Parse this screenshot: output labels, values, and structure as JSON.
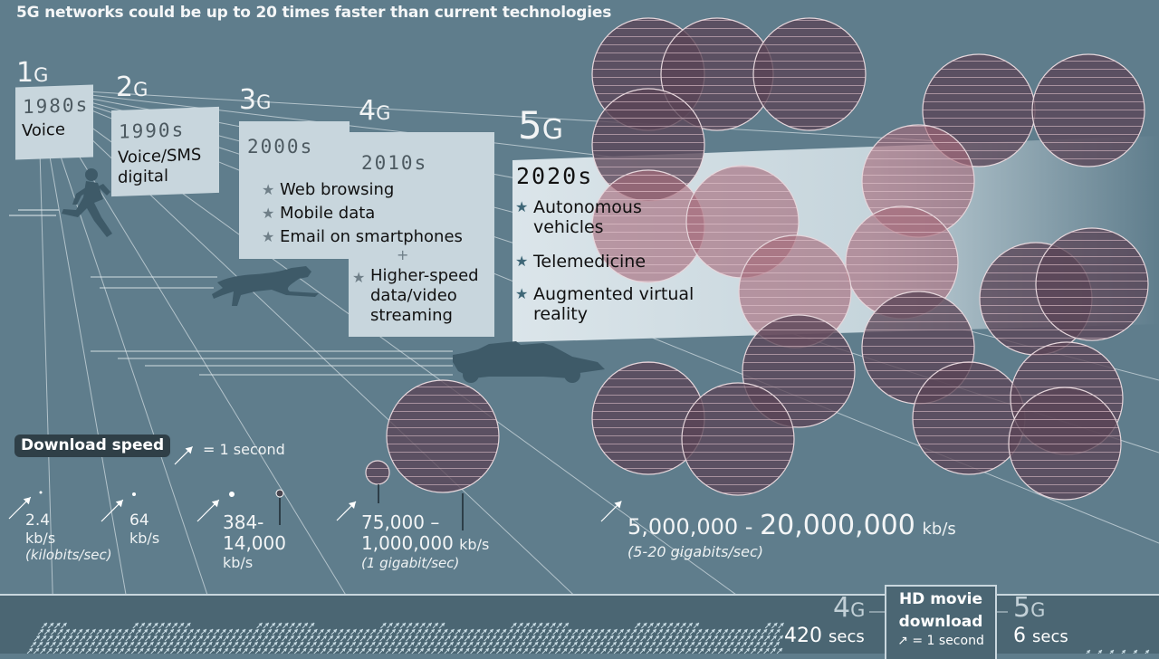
{
  "subtitle": "5G networks could be up to 20 times faster than current technologies",
  "colors": {
    "background": "#5f7d8c",
    "card": "#c8d6dd",
    "bubble_fill": "#5a4456",
    "bubble_fill_highlight": "#a56878",
    "bottom_bar": "#4b6673",
    "badge": "#2f3f47",
    "silhouette": "#3e5a68"
  },
  "generations": [
    {
      "num": "1",
      "g": "G",
      "decade": "1980s",
      "uses": [
        "Voice"
      ]
    },
    {
      "num": "2",
      "g": "G",
      "decade": "1990s",
      "uses": [
        "Voice/SMS",
        "digital"
      ]
    },
    {
      "num": "3",
      "g": "G",
      "decade": "2000s",
      "uses": [
        "Web browsing",
        "Mobile data",
        "Email on smartphones"
      ]
    },
    {
      "num": "4",
      "g": "G",
      "decade": "2010s",
      "plus": "+",
      "uses": [
        "Higher-speed",
        "data/video",
        "streaming"
      ]
    },
    {
      "num": "5",
      "g": "G",
      "decade": "2020s",
      "uses": [
        "Autonomous",
        "vehicles",
        "Telemedicine",
        "Augmented virtual",
        "reality"
      ]
    }
  ],
  "icons": {
    "runner": "runner-silhouette-icon",
    "cheetah": "cheetah-silhouette-icon",
    "race_car": "race-car-silhouette-icon",
    "arrow": "arrow-icon",
    "star": "star-bullet-icon"
  },
  "download_speed": {
    "badge": "Download speed",
    "legend": "= 1 second",
    "speeds": [
      {
        "gen": "1G",
        "value": "2.4",
        "unit": "kb/s",
        "note": "(kilobits/sec)",
        "min_kbps": 2.4,
        "max_kbps": 2.4
      },
      {
        "gen": "2G",
        "value": "64",
        "unit": "kb/s",
        "min_kbps": 64,
        "max_kbps": 64
      },
      {
        "gen": "3G",
        "value_line1": "384-",
        "value_line2": "14,000",
        "unit": "kb/s",
        "min_kbps": 384,
        "max_kbps": 14000
      },
      {
        "gen": "4G",
        "value_line1": "75,000 –",
        "value_line2": "1,000,000",
        "unit": "kb/s",
        "note": "(1 gigabit/sec)",
        "min_kbps": 75000,
        "max_kbps": 1000000
      },
      {
        "gen": "5G",
        "value_min": "5,000,000 - ",
        "value_max": "20,000,000",
        "unit": "kb/s",
        "note": "(5-20 gigabits/sec)",
        "min_kbps": 5000000,
        "max_kbps": 20000000
      }
    ]
  },
  "hd_movie": {
    "title_line1": "HD movie",
    "title_line2": "download",
    "legend": "= 1 second",
    "g4": {
      "num": "4",
      "g": "G",
      "value": "420",
      "unit": "secs",
      "seconds": 420
    },
    "g5": {
      "num": "5",
      "g": "G",
      "value": "6",
      "unit": "secs",
      "seconds": 6
    }
  }
}
